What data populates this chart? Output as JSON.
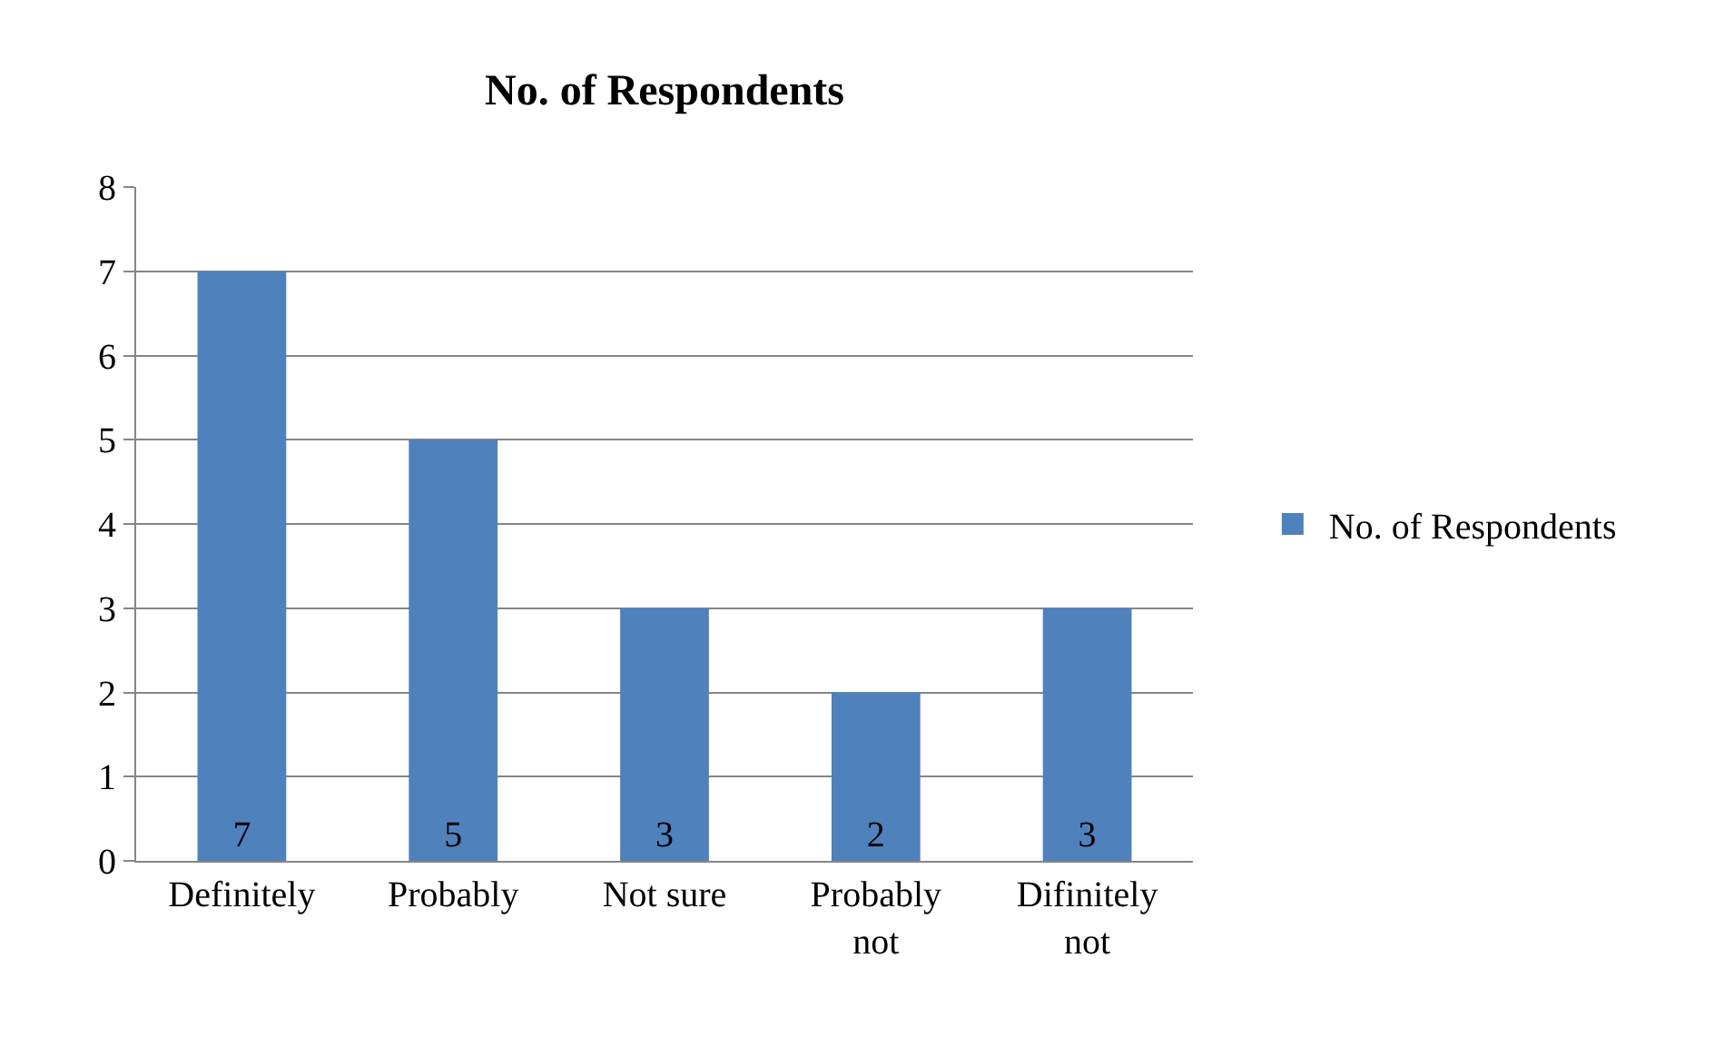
{
  "chart_data": {
    "type": "bar",
    "title": "No. of Respondents",
    "categories": [
      "Definitely",
      "Probably",
      "Not sure",
      "Probably not",
      "Difinitely not"
    ],
    "series": [
      {
        "name": "No. of Respondents",
        "color": "#4f81bd",
        "values": [
          7,
          5,
          3,
          2,
          3
        ]
      }
    ],
    "ylim": [
      0,
      8
    ],
    "yticks": [
      0,
      1,
      2,
      3,
      4,
      5,
      6,
      7,
      8
    ],
    "grid": "y",
    "legend": "right",
    "data_labels": true
  }
}
